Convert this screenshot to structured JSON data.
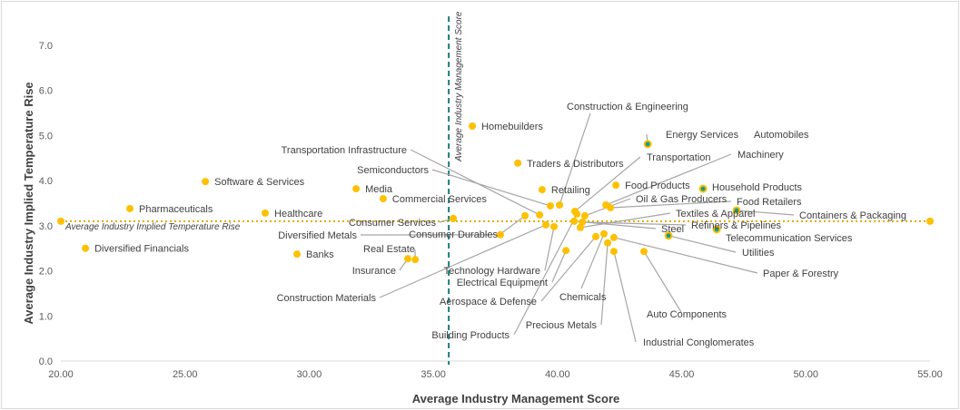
{
  "chart_data": {
    "type": "scatter",
    "xlabel": "Average Industry Management Score",
    "ylabel": "Average Industry Implied Temperature Rise",
    "xlim": [
      20,
      55
    ],
    "ylim": [
      0,
      7
    ],
    "xticks": [
      "20.00",
      "25.00",
      "30.00",
      "35.00",
      "40.00",
      "45.00",
      "50.00",
      "55.00"
    ],
    "yticks": [
      "0.0",
      "1.0",
      "2.0",
      "3.0",
      "4.0",
      "5.0",
      "6.0",
      "7.0"
    ],
    "grid": false,
    "colors": {
      "point": "#FFC000",
      "highlight": "#1A9A8A",
      "leader": "#A6A6A6",
      "avg_temp_line": "#E6A800",
      "avg_score_line": "#1F7F7F"
    },
    "reference_lines": {
      "avg_temperature": {
        "label": "Average Industry Implied Temperature Rise",
        "y": 3.1
      },
      "avg_score": {
        "label": "Average Industry Management Score",
        "x": 35.62
      }
    },
    "points": [
      {
        "name": "Diversified Financials",
        "x": 20.99,
        "y": 2.5
      },
      {
        "name": "Pharmaceuticals",
        "x": 22.78,
        "y": 3.38
      },
      {
        "name": "Software & Services",
        "x": 25.82,
        "y": 3.98
      },
      {
        "name": "Healthcare",
        "x": 28.23,
        "y": 3.28
      },
      {
        "name": "Banks",
        "x": 29.51,
        "y": 2.37
      },
      {
        "name": "Media",
        "x": 31.89,
        "y": 3.82
      },
      {
        "name": "Commercial Services",
        "x": 32.98,
        "y": 3.6
      },
      {
        "name": "Insurance",
        "x": 33.97,
        "y": 2.27
      },
      {
        "name": "Real Estate",
        "x": 34.27,
        "y": 2.25
      },
      {
        "name": "Consumer Services",
        "x": 35.8,
        "y": 3.16
      },
      {
        "name": "Homebuilders",
        "x": 36.57,
        "y": 5.21
      },
      {
        "name": "Diversified Metals",
        "x": 37.7,
        "y": 2.8
      },
      {
        "name": "Traders & Distributors",
        "x": 38.4,
        "y": 4.39
      },
      {
        "name": "Consumer Durables",
        "x": 38.69,
        "y": 3.22
      },
      {
        "name": "Transportation Infrastructure",
        "x": 39.28,
        "y": 3.24
      },
      {
        "name": "Retailing",
        "x": 39.38,
        "y": 3.8
      },
      {
        "name": "Construction Materials",
        "x": 39.53,
        "y": 3.02
      },
      {
        "name": "Semiconductors",
        "x": 39.71,
        "y": 3.44
      },
      {
        "name": "Technology Hardware",
        "x": 39.86,
        "y": 2.98
      },
      {
        "name": "Construction & Engineering",
        "x": 40.08,
        "y": 3.46
      },
      {
        "name": "Electrical Equipment",
        "x": 40.34,
        "y": 2.45
      },
      {
        "name": "Steel",
        "x": 40.67,
        "y": 3.1
      },
      {
        "name": "Transportation",
        "x": 40.7,
        "y": 3.32
      },
      {
        "name": "Building Products",
        "x": 40.78,
        "y": 3.26
      },
      {
        "name": "Textiles & Apparel",
        "x": 40.92,
        "y": 2.96
      },
      {
        "name": "Refiners & Pipelines",
        "x": 41.0,
        "y": 3.08
      },
      {
        "name": "Oil & Gas Producers",
        "x": 41.1,
        "y": 3.22
      },
      {
        "name": "Aerospace & Defense",
        "x": 41.54,
        "y": 2.76
      },
      {
        "name": "Chemicals",
        "x": 41.87,
        "y": 2.82
      },
      {
        "name": "Machinery",
        "x": 41.95,
        "y": 3.46
      },
      {
        "name": "Precious Metals",
        "x": 42.02,
        "y": 2.62
      },
      {
        "name": "Food Retailers",
        "x": 42.13,
        "y": 3.4
      },
      {
        "name": "Paper & Forestry",
        "x": 42.27,
        "y": 2.74
      },
      {
        "name": "Industrial Conglomerates",
        "x": 42.27,
        "y": 2.43
      },
      {
        "name": "Food Products",
        "x": 42.35,
        "y": 3.9
      },
      {
        "name": "Auto Components",
        "x": 43.48,
        "y": 2.43
      },
      {
        "name": "Energy Services",
        "x": 43.63,
        "y": 4.81,
        "highlight": true
      },
      {
        "name": "Automobiles",
        "x": 43.63,
        "y": 4.81,
        "highlight": true
      },
      {
        "name": "Utilities",
        "x": 44.47,
        "y": 2.78,
        "highlight": true
      },
      {
        "name": "Household Products",
        "x": 45.86,
        "y": 3.82,
        "highlight": true
      },
      {
        "name": "Telecommunication Services",
        "x": 46.41,
        "y": 2.92,
        "highlight": true
      },
      {
        "name": "Containers & Packaging",
        "x": 47.21,
        "y": 3.34,
        "highlight": true
      }
    ]
  }
}
